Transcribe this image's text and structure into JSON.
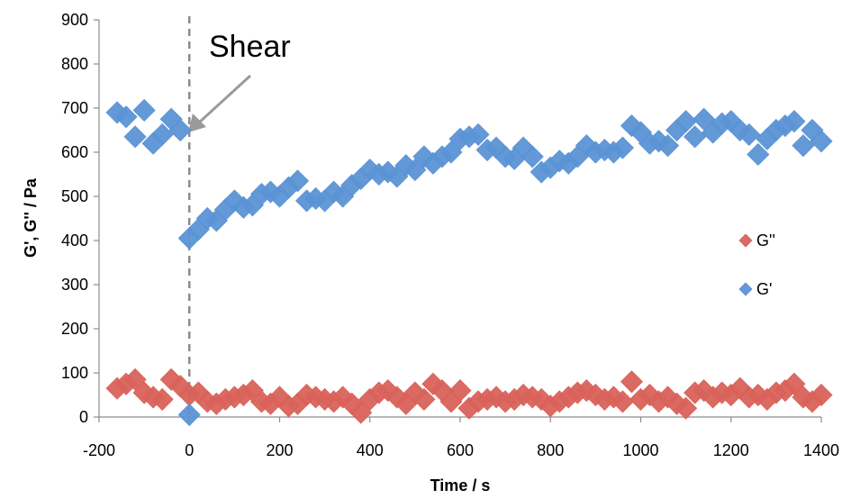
{
  "chart_data": {
    "type": "scatter",
    "title": "",
    "xlabel": "Time / s",
    "ylabel": "G', G'' / Pa",
    "xlim": [
      -200,
      1400
    ],
    "ylim": [
      0,
      900
    ],
    "xticks": [
      -200,
      0,
      200,
      400,
      600,
      800,
      1000,
      1200,
      1400
    ],
    "yticks": [
      0,
      100,
      200,
      300,
      400,
      500,
      600,
      700,
      800,
      900
    ],
    "xtick_labels": [
      "-200",
      "0",
      "200",
      "400",
      "600",
      "800",
      "1000",
      "1200",
      "1400"
    ],
    "ytick_labels": [
      "0",
      "100",
      "200",
      "300",
      "400",
      "500",
      "600",
      "700",
      "800",
      "900"
    ],
    "grid": false,
    "legend_position": "right",
    "annotation": {
      "text": "Shear",
      "x": 0
    },
    "series": [
      {
        "name": "G''",
        "color": "#d9625a",
        "x": [
          -160,
          -140,
          -120,
          -100,
          -80,
          -60,
          -40,
          -20,
          0,
          20,
          40,
          60,
          80,
          100,
          120,
          140,
          160,
          180,
          200,
          220,
          240,
          260,
          280,
          300,
          320,
          340,
          360,
          380,
          400,
          420,
          440,
          460,
          480,
          500,
          520,
          540,
          560,
          580,
          600,
          620,
          640,
          660,
          680,
          700,
          720,
          740,
          760,
          780,
          800,
          820,
          840,
          860,
          880,
          900,
          920,
          940,
          960,
          980,
          1000,
          1020,
          1040,
          1060,
          1080,
          1100,
          1120,
          1140,
          1160,
          1180,
          1200,
          1220,
          1240,
          1260,
          1280,
          1300,
          1320,
          1340,
          1360,
          1380,
          1400
        ],
        "y": [
          65,
          75,
          85,
          55,
          45,
          40,
          85,
          70,
          50,
          55,
          35,
          30,
          40,
          45,
          50,
          60,
          35,
          30,
          45,
          25,
          30,
          50,
          45,
          40,
          35,
          45,
          30,
          10,
          40,
          55,
          60,
          45,
          30,
          55,
          40,
          75,
          60,
          35,
          60,
          20,
          35,
          40,
          45,
          35,
          40,
          50,
          45,
          40,
          25,
          35,
          45,
          55,
          60,
          50,
          40,
          45,
          35,
          80,
          40,
          50,
          35,
          45,
          30,
          20,
          55,
          60,
          45,
          55,
          50,
          65,
          45,
          50,
          40,
          55,
          60,
          75,
          45,
          35,
          50
        ]
      },
      {
        "name": "G'",
        "color": "#5b93d5",
        "x": [
          -160,
          -140,
          -120,
          -100,
          -80,
          -60,
          -40,
          -20,
          0,
          0,
          20,
          40,
          60,
          80,
          100,
          120,
          140,
          160,
          180,
          200,
          220,
          240,
          260,
          280,
          300,
          320,
          340,
          360,
          380,
          400,
          420,
          440,
          460,
          480,
          500,
          520,
          540,
          560,
          580,
          600,
          620,
          640,
          660,
          680,
          700,
          720,
          740,
          760,
          780,
          800,
          820,
          840,
          860,
          880,
          900,
          920,
          940,
          960,
          980,
          1000,
          1020,
          1040,
          1060,
          1080,
          1100,
          1120,
          1140,
          1160,
          1180,
          1200,
          1220,
          1240,
          1260,
          1280,
          1300,
          1320,
          1340,
          1360,
          1380,
          1400
        ],
        "y": [
          690,
          680,
          635,
          695,
          620,
          640,
          675,
          650,
          5,
          405,
          425,
          450,
          445,
          470,
          490,
          475,
          480,
          505,
          510,
          500,
          520,
          535,
          490,
          495,
          490,
          510,
          500,
          525,
          540,
          560,
          550,
          555,
          545,
          570,
          560,
          590,
          575,
          590,
          600,
          630,
          635,
          640,
          605,
          610,
          590,
          585,
          610,
          590,
          555,
          565,
          580,
          575,
          590,
          615,
          600,
          605,
          600,
          610,
          660,
          645,
          620,
          625,
          615,
          650,
          670,
          635,
          675,
          645,
          665,
          670,
          650,
          640,
          595,
          630,
          650,
          660,
          670,
          615,
          650,
          625
        ]
      }
    ]
  }
}
